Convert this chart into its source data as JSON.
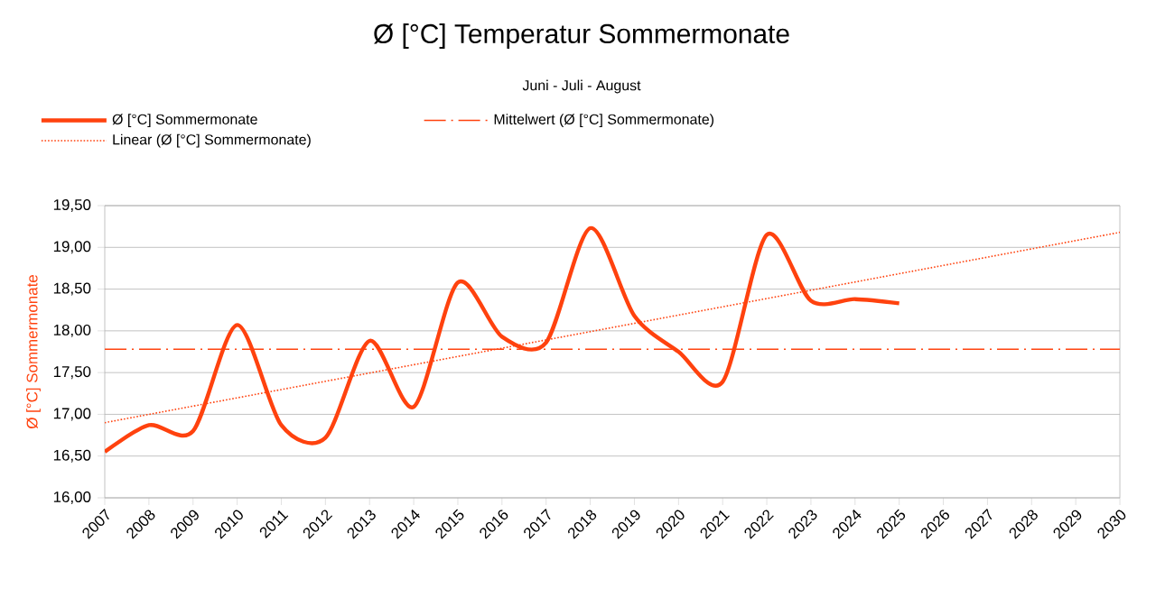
{
  "chart_data": {
    "type": "line",
    "title": "Ø [°C] Temperatur Sommermonate",
    "subtitle": "Juni - Juli - August",
    "ylabel": "Ø [°C] Sommermonate",
    "x": [
      2007,
      2008,
      2009,
      2010,
      2011,
      2012,
      2013,
      2014,
      2015,
      2016,
      2017,
      2018,
      2019,
      2020,
      2021,
      2022,
      2023,
      2024,
      2025
    ],
    "series": [
      {
        "name": "Ø [°C] Sommermonate",
        "color": "#ff420e",
        "line_style": "solid",
        "values": [
          16.55,
          16.87,
          16.8,
          18.07,
          16.87,
          16.72,
          17.88,
          17.09,
          18.58,
          17.93,
          17.86,
          19.23,
          18.18,
          17.75,
          17.39,
          19.15,
          18.36,
          18.38,
          18.33
        ]
      },
      {
        "name": "Linear (Ø [°C] Sommermonate)",
        "type": "line",
        "color": "#ff420e",
        "line_style": "dotted",
        "x": [
          2007,
          2030
        ],
        "values": [
          16.9,
          19.18
        ]
      }
    ],
    "ref_lines": [
      {
        "axis": "y",
        "value": 17.78,
        "label": "Mittelwert (Ø [°C] Sommermonate)",
        "color": "#ff420e",
        "line_style": "dashdot"
      }
    ],
    "xlim": [
      2007,
      2030
    ],
    "xticks": [
      2007,
      2008,
      2009,
      2010,
      2011,
      2012,
      2013,
      2014,
      2015,
      2016,
      2017,
      2018,
      2019,
      2020,
      2021,
      2022,
      2023,
      2024,
      2025,
      2026,
      2027,
      2028,
      2029,
      2030
    ],
    "ylim": [
      16,
      19.5
    ],
    "yticks": [
      {
        "value": 16,
        "label": "16,00"
      },
      {
        "value": 16.5,
        "label": "16,50"
      },
      {
        "value": 17,
        "label": "17,00"
      },
      {
        "value": 17.5,
        "label": "17,50"
      },
      {
        "value": 18,
        "label": "18,00"
      },
      {
        "value": 18.5,
        "label": "18,50"
      },
      {
        "value": 19,
        "label": "19,00"
      },
      {
        "value": 19.5,
        "label": "19,50"
      }
    ],
    "grid": "y",
    "legend": "top"
  }
}
